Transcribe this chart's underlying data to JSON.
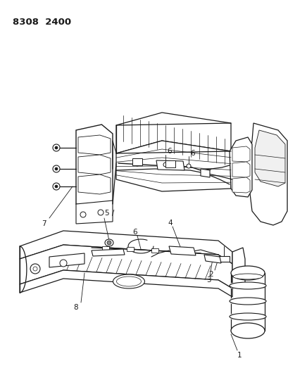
{
  "title_text": "8308  2400",
  "bg_color": "#ffffff",
  "line_color": "#1a1a1a",
  "label_fontsize": 7.5,
  "title_fontsize": 9.5
}
